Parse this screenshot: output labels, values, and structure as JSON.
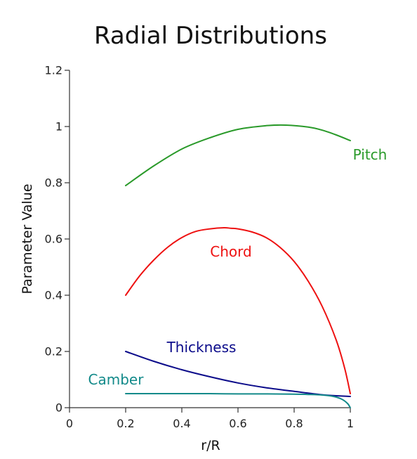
{
  "chart_data": {
    "type": "line",
    "title": "Radial Distributions",
    "xlabel": "r/R",
    "ylabel": "Parameter Value",
    "xlim": [
      0,
      1
    ],
    "ylim": [
      0,
      1.2
    ],
    "xticks": [
      0,
      0.2,
      0.4,
      0.6,
      0.8,
      1
    ],
    "xtick_labels": [
      "0",
      "0.2",
      "0.4",
      "0.6",
      "0.8",
      "1"
    ],
    "yticks": [
      0,
      0.2,
      0.4,
      0.6,
      0.8,
      1,
      1.2
    ],
    "ytick_labels": [
      "0",
      "0.2",
      "0.4",
      "0.6",
      "0.8",
      "1",
      "1.2"
    ],
    "grid": false,
    "legend": "none",
    "series": [
      {
        "name": "Pitch",
        "color": "#2a9a2a",
        "x": [
          0.2,
          0.3,
          0.4,
          0.5,
          0.6,
          0.7,
          0.77,
          0.85,
          0.9,
          0.95,
          1.0
        ],
        "y": [
          0.79,
          0.86,
          0.92,
          0.96,
          0.99,
          1.003,
          1.005,
          0.998,
          0.987,
          0.97,
          0.95
        ]
      },
      {
        "name": "Chord",
        "color": "#ee1111",
        "x": [
          0.2,
          0.25,
          0.3,
          0.35,
          0.4,
          0.45,
          0.5,
          0.55,
          0.575,
          0.6,
          0.65,
          0.7,
          0.75,
          0.8,
          0.85,
          0.9,
          0.95,
          0.98,
          1.0
        ],
        "y": [
          0.4,
          0.469,
          0.525,
          0.571,
          0.605,
          0.627,
          0.636,
          0.64,
          0.638,
          0.636,
          0.625,
          0.605,
          0.57,
          0.52,
          0.45,
          0.36,
          0.24,
          0.14,
          0.05
        ]
      },
      {
        "name": "Thickness",
        "color": "#0b0b8a",
        "x": [
          0.2,
          0.3,
          0.4,
          0.5,
          0.6,
          0.7,
          0.8,
          0.9,
          1.0
        ],
        "y": [
          0.2,
          0.165,
          0.135,
          0.11,
          0.088,
          0.071,
          0.058,
          0.046,
          0.04
        ]
      },
      {
        "name": "Camber",
        "color": "#138a8a",
        "x": [
          0.2,
          0.3,
          0.4,
          0.5,
          0.6,
          0.7,
          0.8,
          0.85,
          0.9,
          0.94,
          0.97,
          0.99,
          1.0
        ],
        "y": [
          0.05,
          0.05,
          0.05,
          0.05,
          0.049,
          0.049,
          0.048,
          0.047,
          0.045,
          0.04,
          0.03,
          0.015,
          0.0
        ]
      }
    ],
    "annotations": [
      {
        "text": "Pitch",
        "x": 1.07,
        "y": 0.9,
        "color": "#2a9a2a",
        "anchor": "middle"
      },
      {
        "text": "Chord",
        "x": 0.575,
        "y": 0.555,
        "color": "#ee1111",
        "anchor": "middle"
      },
      {
        "text": "Thickness",
        "x": 0.47,
        "y": 0.215,
        "color": "#0b0b8a",
        "anchor": "middle"
      },
      {
        "text": "Camber",
        "x": 0.165,
        "y": 0.1,
        "color": "#138a8a",
        "anchor": "middle"
      }
    ]
  }
}
